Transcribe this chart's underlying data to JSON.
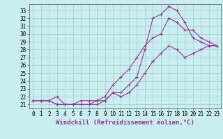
{
  "title": "",
  "xlabel": "Windchill (Refroidissement éolien,°C)",
  "ylabel": "",
  "bg_color": "#c8eef0",
  "grid_color": "#a0cccc",
  "line_color": "#993399",
  "xlim": [
    -0.5,
    23.5
  ],
  "ylim": [
    20.5,
    33.8
  ],
  "xticks": [
    0,
    1,
    2,
    3,
    4,
    5,
    6,
    7,
    8,
    9,
    10,
    11,
    12,
    13,
    14,
    15,
    16,
    17,
    18,
    19,
    20,
    21,
    22,
    23
  ],
  "yticks": [
    21,
    22,
    23,
    24,
    25,
    26,
    27,
    28,
    29,
    30,
    31,
    32,
    33
  ],
  "line1_x": [
    0,
    1,
    2,
    3,
    4,
    5,
    6,
    7,
    8,
    9,
    10,
    11,
    12,
    13,
    14,
    15,
    16,
    17,
    18,
    19,
    20,
    21,
    22,
    23
  ],
  "line1_y": [
    21.5,
    21.5,
    21.5,
    21.0,
    21.0,
    21.0,
    21.0,
    21.0,
    21.5,
    21.5,
    22.5,
    22.5,
    23.5,
    24.5,
    28.0,
    32.0,
    32.5,
    33.5,
    33.0,
    31.5,
    29.5,
    29.0,
    28.5,
    28.5
  ],
  "line2_x": [
    0,
    1,
    2,
    3,
    4,
    5,
    6,
    7,
    8,
    9,
    10,
    11,
    12,
    13,
    14,
    15,
    16,
    17,
    18,
    19,
    20,
    21,
    22,
    23
  ],
  "line2_y": [
    21.5,
    21.5,
    21.5,
    21.0,
    21.0,
    21.0,
    21.5,
    21.5,
    21.5,
    22.0,
    23.5,
    24.5,
    25.5,
    27.0,
    28.5,
    29.5,
    30.0,
    32.0,
    31.5,
    30.5,
    30.5,
    29.5,
    29.0,
    28.5
  ],
  "line3_x": [
    0,
    1,
    2,
    3,
    4,
    5,
    6,
    7,
    8,
    9,
    10,
    11,
    12,
    13,
    14,
    15,
    16,
    17,
    18,
    19,
    20,
    21,
    22,
    23
  ],
  "line3_y": [
    21.5,
    21.5,
    21.5,
    22.0,
    21.0,
    21.0,
    21.0,
    21.0,
    21.0,
    21.5,
    22.5,
    22.0,
    22.5,
    23.5,
    25.0,
    26.5,
    27.5,
    28.5,
    28.0,
    27.0,
    27.5,
    28.0,
    28.5,
    28.5
  ],
  "marker": "+",
  "markersize": 3,
  "linewidth": 0.8,
  "xlabel_fontsize": 6.5,
  "tick_fontsize": 5.5
}
